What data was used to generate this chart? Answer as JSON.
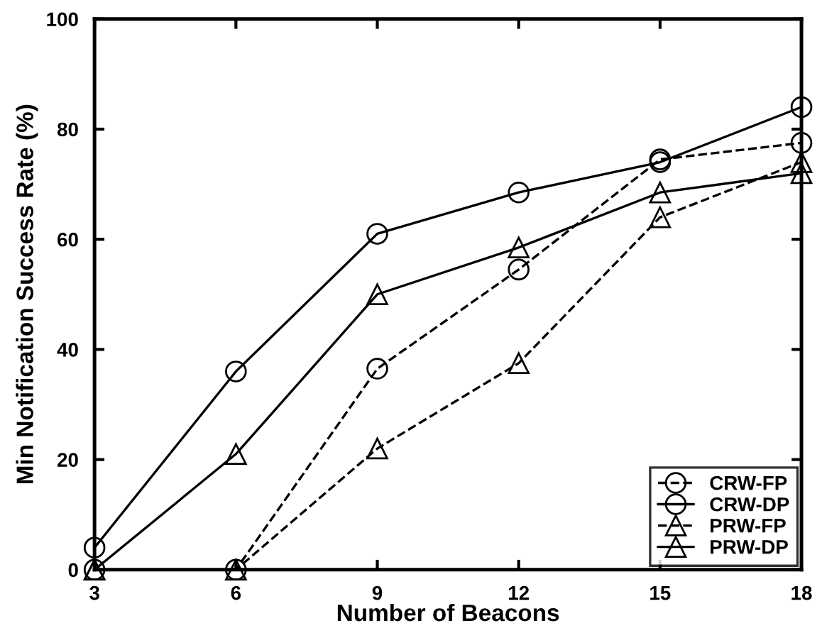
{
  "chart_data": {
    "type": "line",
    "xlabel": "Number of Beacons",
    "ylabel": "Min Notification Success Rate (%)",
    "x": [
      3,
      6,
      9,
      12,
      15,
      18
    ],
    "xlim": [
      3,
      18
    ],
    "xticks": [
      3,
      6,
      9,
      12,
      15,
      18
    ],
    "ylim": [
      0,
      100
    ],
    "yticks": [
      0,
      20,
      40,
      60,
      80,
      100
    ],
    "grid": false,
    "legend": "bottom right",
    "series": [
      {
        "name": "CRW-FP",
        "color": "#000000",
        "marker": "circle",
        "line_style": "dashed",
        "values": [
          0,
          0,
          36.5,
          54.5,
          74.5,
          77.5
        ]
      },
      {
        "name": "CRW-DP",
        "color": "#000000",
        "marker": "circle",
        "line_style": "solid",
        "values": [
          4,
          36,
          61,
          68.5,
          74,
          84
        ]
      },
      {
        "name": "PRW-FP",
        "color": "#000000",
        "marker": "triangle",
        "line_style": "dashed",
        "values": [
          0,
          0,
          22,
          37.5,
          64,
          74
        ]
      },
      {
        "name": "PRW-DP",
        "color": "#000000",
        "marker": "triangle",
        "line_style": "solid",
        "values": [
          0,
          21,
          50,
          58.5,
          68.5,
          72
        ]
      }
    ]
  }
}
